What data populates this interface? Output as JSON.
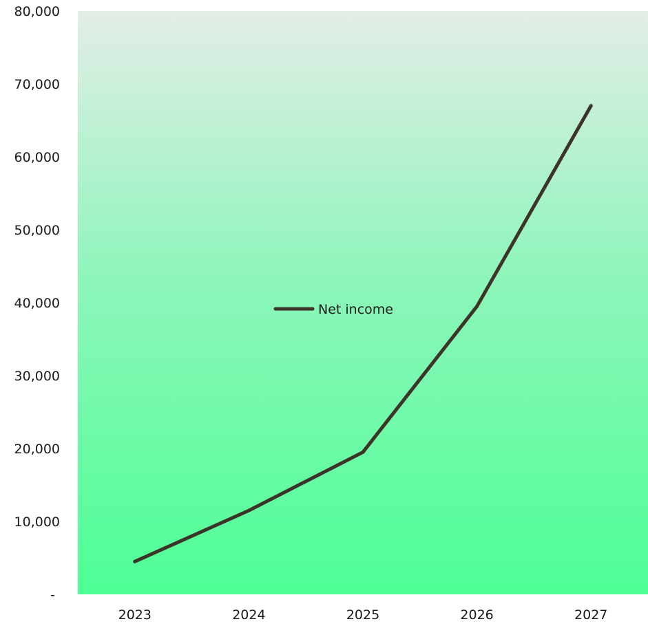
{
  "chart_data": {
    "type": "line",
    "title": "",
    "xlabel": "",
    "ylabel": "",
    "categories": [
      "2023",
      "2024",
      "2025",
      "2026",
      "2027"
    ],
    "series": [
      {
        "name": "Net income",
        "values": [
          4500,
          11500,
          19500,
          39500,
          67000
        ],
        "color": "#3d3429"
      }
    ],
    "ylim": [
      0,
      80000
    ],
    "y_ticks": [
      0,
      10000,
      20000,
      30000,
      40000,
      50000,
      60000,
      70000,
      80000
    ],
    "y_tick_labels": [
      "-",
      "10,000",
      "20,000",
      "30,000",
      "40,000",
      "50,000",
      "60,000",
      "70,000",
      "80,000"
    ],
    "grid": false,
    "legend_position": "center",
    "background_gradient": [
      "#e3ede7",
      "#4dff95"
    ]
  }
}
